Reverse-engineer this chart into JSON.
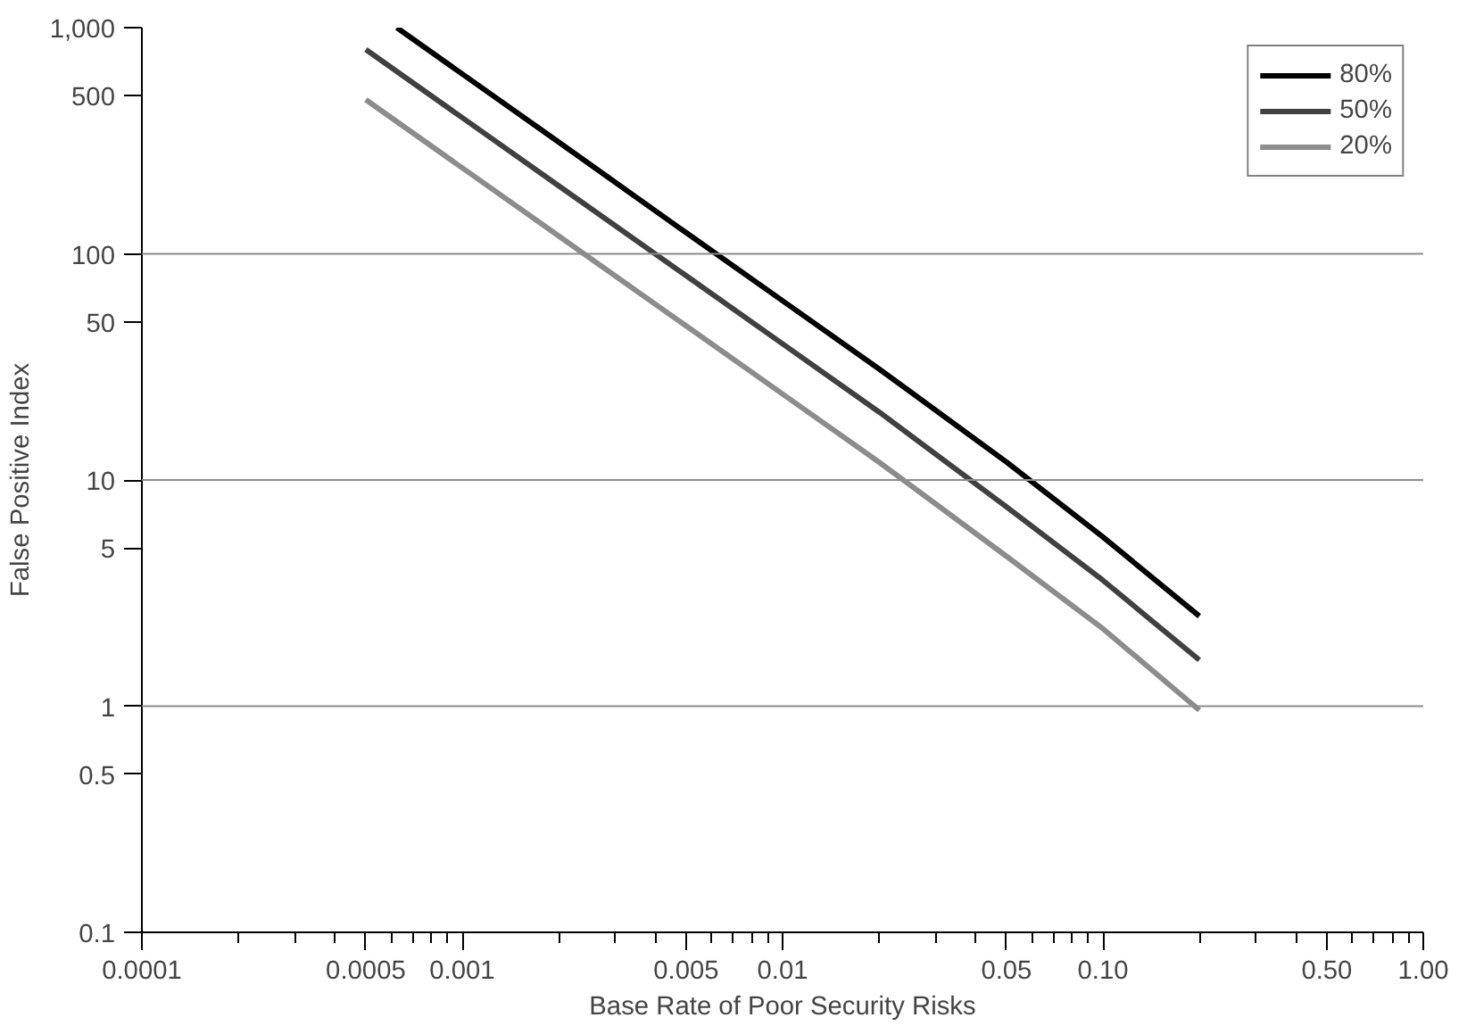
{
  "chart_data": {
    "type": "line",
    "xlabel": "Base Rate of Poor Security Risks",
    "ylabel": "False Positive Index",
    "log": "xy",
    "xlim": [
      0.0001,
      1.0
    ],
    "ylim": [
      0.1,
      1000
    ],
    "xticks": [
      {
        "value": 0.0001,
        "label": "0.0001"
      },
      {
        "value": 0.0002,
        "label": null
      },
      {
        "value": 0.0003,
        "label": null
      },
      {
        "value": 0.0004,
        "label": null
      },
      {
        "value": 0.0005,
        "label": "0.0005"
      },
      {
        "value": 0.0006,
        "label": null
      },
      {
        "value": 0.0007,
        "label": null
      },
      {
        "value": 0.0008,
        "label": null
      },
      {
        "value": 0.0009,
        "label": null
      },
      {
        "value": 0.001,
        "label": "0.001"
      },
      {
        "value": 0.002,
        "label": null
      },
      {
        "value": 0.003,
        "label": null
      },
      {
        "value": 0.004,
        "label": null
      },
      {
        "value": 0.005,
        "label": "0.005"
      },
      {
        "value": 0.006,
        "label": null
      },
      {
        "value": 0.007,
        "label": null
      },
      {
        "value": 0.008,
        "label": null
      },
      {
        "value": 0.009,
        "label": null
      },
      {
        "value": 0.01,
        "label": "0.01"
      },
      {
        "value": 0.02,
        "label": null
      },
      {
        "value": 0.03,
        "label": null
      },
      {
        "value": 0.04,
        "label": null
      },
      {
        "value": 0.05,
        "label": "0.05"
      },
      {
        "value": 0.06,
        "label": null
      },
      {
        "value": 0.07,
        "label": null
      },
      {
        "value": 0.08,
        "label": null
      },
      {
        "value": 0.09,
        "label": null
      },
      {
        "value": 0.1,
        "label": "0.10"
      },
      {
        "value": 0.2,
        "label": null
      },
      {
        "value": 0.3,
        "label": null
      },
      {
        "value": 0.4,
        "label": null
      },
      {
        "value": 0.5,
        "label": "0.50"
      },
      {
        "value": 0.6,
        "label": null
      },
      {
        "value": 0.7,
        "label": null
      },
      {
        "value": 0.8,
        "label": null
      },
      {
        "value": 0.9,
        "label": null
      },
      {
        "value": 1.0,
        "label": "1.00"
      }
    ],
    "yticks": [
      0.1,
      0.5,
      1,
      5,
      10,
      50,
      100,
      500,
      {
        "value": 1000,
        "label": "1,000"
      }
    ],
    "ref_lines": [
      {
        "axis": "y",
        "value": 1,
        "color": "#8c8c8c"
      },
      {
        "axis": "y",
        "value": 10,
        "color": "#8c8c8c"
      },
      {
        "axis": "y",
        "value": 100,
        "color": "#8c8c8c"
      }
    ],
    "legend": "top right",
    "grid": false,
    "line_style": "solid",
    "marker": "none",
    "series": [
      {
        "name": "80%",
        "color": "#000000",
        "x": [
          0.000625,
          0.001,
          0.002,
          0.005,
          0.01,
          0.02,
          0.05,
          0.1,
          0.2
        ],
        "values": [
          1000,
          624,
          312,
          124,
          62,
          31,
          12,
          5.6,
          2.5
        ]
      },
      {
        "name": "50%",
        "color": "#404040",
        "x": [
          0.0005,
          0.001,
          0.002,
          0.005,
          0.01,
          0.02,
          0.05,
          0.1,
          0.2
        ],
        "values": [
          800,
          400,
          200,
          80,
          40,
          20,
          7.6,
          3.6,
          1.6
        ]
      },
      {
        "name": "20%",
        "color": "#8c8c8c",
        "x": [
          0.0005,
          0.001,
          0.002,
          0.005,
          0.01,
          0.02,
          0.05,
          0.1,
          0.2
        ],
        "values": [
          480,
          240,
          120,
          48,
          24,
          12,
          4.6,
          2.2,
          0.96
        ]
      }
    ]
  }
}
